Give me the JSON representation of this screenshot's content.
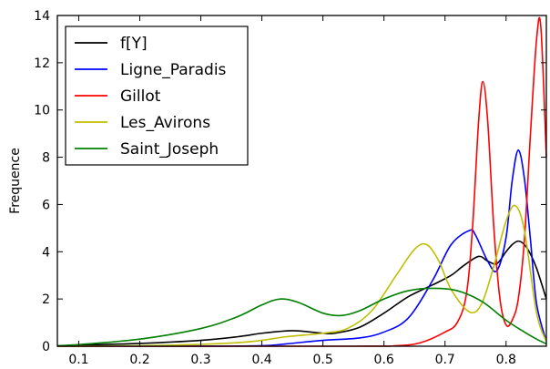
{
  "chart_data": {
    "type": "line",
    "title": "",
    "xlabel": "",
    "ylabel": "Frequence",
    "xlim": [
      0.065,
      0.866
    ],
    "ylim": [
      0,
      14
    ],
    "xticks": [
      0.1,
      0.2,
      0.3,
      0.4,
      0.5,
      0.6,
      0.7,
      0.8
    ],
    "yticks": [
      0,
      2,
      4,
      6,
      8,
      10,
      12,
      14
    ],
    "grid": false,
    "legend_position": "top-left",
    "series": [
      {
        "name": "f[Y]",
        "color": "#000000",
        "x": [
          0.065,
          0.1,
          0.2,
          0.3,
          0.36,
          0.4,
          0.44,
          0.46,
          0.5,
          0.52,
          0.56,
          0.6,
          0.64,
          0.68,
          0.71,
          0.73,
          0.755,
          0.77,
          0.785,
          0.8,
          0.81,
          0.82,
          0.83,
          0.84,
          0.85,
          0.866
        ],
        "y": [
          0.01,
          0.05,
          0.12,
          0.25,
          0.4,
          0.55,
          0.65,
          0.65,
          0.55,
          0.55,
          0.8,
          1.4,
          2.1,
          2.6,
          3.0,
          3.4,
          3.8,
          3.6,
          3.5,
          4.0,
          4.3,
          4.45,
          4.3,
          3.9,
          3.3,
          2.0
        ]
      },
      {
        "name": "Ligne_Paradis",
        "color": "#0000ff",
        "x": [
          0.065,
          0.3,
          0.4,
          0.44,
          0.5,
          0.56,
          0.6,
          0.64,
          0.68,
          0.71,
          0.74,
          0.75,
          0.77,
          0.785,
          0.8,
          0.81,
          0.82,
          0.83,
          0.84,
          0.85,
          0.866
        ],
        "y": [
          0,
          0,
          0.02,
          0.1,
          0.25,
          0.35,
          0.6,
          1.2,
          2.8,
          4.3,
          4.9,
          4.7,
          3.6,
          3.2,
          4.6,
          7.0,
          8.3,
          7.1,
          4.5,
          1.8,
          0.2
        ]
      },
      {
        "name": "Gillot",
        "color": "#ff0000",
        "x": [
          0.065,
          0.55,
          0.62,
          0.66,
          0.7,
          0.72,
          0.735,
          0.745,
          0.755,
          0.762,
          0.77,
          0.78,
          0.79,
          0.8,
          0.81,
          0.82,
          0.83,
          0.84,
          0.85,
          0.857,
          0.866
        ],
        "y": [
          0,
          0,
          0.02,
          0.15,
          0.6,
          1.0,
          2.2,
          5.0,
          9.5,
          11.2,
          9.5,
          5.0,
          2.0,
          0.9,
          1.1,
          2.0,
          4.5,
          9.0,
          13.0,
          13.5,
          8.0
        ]
      },
      {
        "name": "Les_Avirons",
        "color": "#bfbf00",
        "x": [
          0.065,
          0.2,
          0.3,
          0.36,
          0.4,
          0.44,
          0.5,
          0.54,
          0.58,
          0.62,
          0.65,
          0.67,
          0.69,
          0.71,
          0.74,
          0.76,
          0.78,
          0.8,
          0.815,
          0.83,
          0.85,
          0.866
        ],
        "y": [
          0,
          0.02,
          0.08,
          0.15,
          0.25,
          0.4,
          0.55,
          0.75,
          1.5,
          3.0,
          4.1,
          4.3,
          3.6,
          2.4,
          1.45,
          1.8,
          3.4,
          5.3,
          5.95,
          4.9,
          1.4,
          0.2
        ]
      },
      {
        "name": "Saint_Joseph",
        "color": "#008000",
        "x": [
          0.065,
          0.1,
          0.2,
          0.3,
          0.36,
          0.4,
          0.43,
          0.46,
          0.5,
          0.53,
          0.56,
          0.6,
          0.64,
          0.68,
          0.72,
          0.76,
          0.8,
          0.83,
          0.85,
          0.866
        ],
        "y": [
          0.02,
          0.07,
          0.3,
          0.75,
          1.25,
          1.75,
          2.0,
          1.85,
          1.4,
          1.3,
          1.5,
          2.0,
          2.35,
          2.45,
          2.35,
          1.9,
          1.1,
          0.6,
          0.3,
          0.1
        ]
      }
    ]
  }
}
